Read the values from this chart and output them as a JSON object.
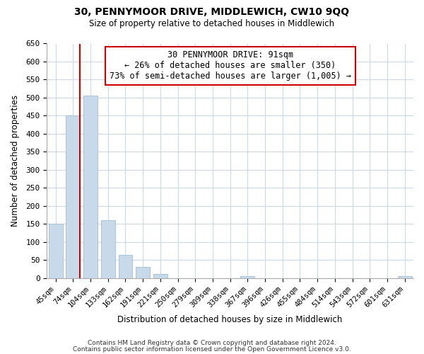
{
  "title": "30, PENNYMOOR DRIVE, MIDDLEWICH, CW10 9QQ",
  "subtitle": "Size of property relative to detached houses in Middlewich",
  "xlabel": "Distribution of detached houses by size in Middlewich",
  "ylabel": "Number of detached properties",
  "footer_line1": "Contains HM Land Registry data © Crown copyright and database right 2024.",
  "footer_line2": "Contains public sector information licensed under the Open Government Licence v3.0.",
  "categories": [
    "45sqm",
    "74sqm",
    "104sqm",
    "133sqm",
    "162sqm",
    "191sqm",
    "221sqm",
    "250sqm",
    "279sqm",
    "309sqm",
    "338sqm",
    "367sqm",
    "396sqm",
    "426sqm",
    "455sqm",
    "484sqm",
    "514sqm",
    "543sqm",
    "572sqm",
    "601sqm",
    "631sqm"
  ],
  "values": [
    150,
    450,
    505,
    160,
    65,
    32,
    12,
    0,
    0,
    0,
    0,
    5,
    0,
    0,
    0,
    0,
    0,
    0,
    0,
    0,
    5
  ],
  "bar_color": "#c8daea",
  "bar_edge_color": "#a8c4d8",
  "subject_line_color": "#cc0000",
  "annotation_box_text": "30 PENNYMOOR DRIVE: 91sqm\n← 26% of detached houses are smaller (350)\n73% of semi-detached houses are larger (1,005) →",
  "ylim": [
    0,
    650
  ],
  "yticks": [
    0,
    50,
    100,
    150,
    200,
    250,
    300,
    350,
    400,
    450,
    500,
    550,
    600,
    650
  ],
  "background_color": "#ffffff",
  "grid_color": "#ccd8e4"
}
